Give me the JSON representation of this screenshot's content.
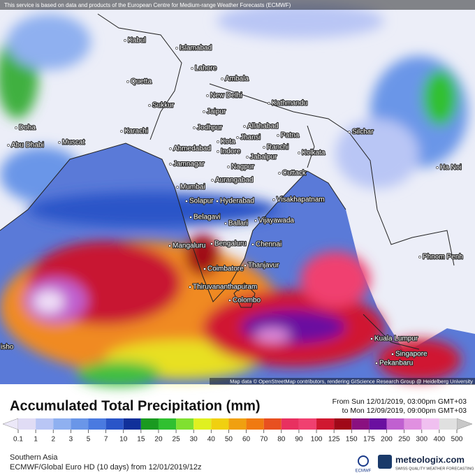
{
  "header": {
    "notice": "This service is based on data and products of the European Centre for Medium-range Weather Forecasts (ECMWF)"
  },
  "map": {
    "attribution": "Map data © OpenStreetMap contributors, rendering GIScience Research Group @ Heidelberg University",
    "cities": [
      "Kabul",
      "Islamabad",
      "Lahore",
      "Quetta",
      "Ambala",
      "New Delhi",
      "Sukkur",
      "Jaipur",
      "Karachi",
      "Jodhpur",
      "Kathmandu",
      "Allahabad",
      "Patna",
      "Jhansi",
      "Kota",
      "Ranchi",
      "Indore",
      "Ahmedabad",
      "Jabalpur",
      "Kolkata",
      "Silchar",
      "Doha",
      "Abu Dhabi",
      "Muscat",
      "Jamnagar",
      "Nagpur",
      "Cuttack",
      "Aurangabad",
      "Mumbai",
      "Solapur",
      "Hyderabad",
      "Visakhapatnam",
      "Belagavi",
      "Ballari",
      "Vijayawada",
      "Mangaluru",
      "Bengaluru",
      "Chennai",
      "Coimbatore",
      "Thanjavur",
      "Thiruvananthapuram",
      "Colombo",
      "Kuala Lumpur",
      "Singapore",
      "Pekanbaru",
      "Phnom Penh",
      "Ha Noi",
      "isho"
    ]
  },
  "panel": {
    "title": "Accumulated Total Precipitation (mm)",
    "from": "From Sun 12/01/2019, 03:00pm GMT+03",
    "to": "to Mon 12/09/2019, 09:00pm GMT+03"
  },
  "legend": {
    "ticks": [
      0.1,
      1,
      2,
      3,
      5,
      7,
      10,
      15,
      20,
      25,
      30,
      40,
      50,
      60,
      70,
      80,
      90,
      100,
      125,
      150,
      175,
      200,
      250,
      300,
      400,
      500
    ],
    "colors": [
      "#e0dcf5",
      "#b9c6f5",
      "#8fb0f0",
      "#6a96e8",
      "#4a7ae0",
      "#2a55c8",
      "#10309a",
      "#1a9a20",
      "#30c030",
      "#80e030",
      "#e0f020",
      "#f0d010",
      "#f0a010",
      "#f07a10",
      "#e85020",
      "#e83060",
      "#f04070",
      "#d01830",
      "#a00818",
      "#8a1080",
      "#6a10a0",
      "#c060d0",
      "#e090e0",
      "#f0c0f0",
      "#e0e0e0"
    ]
  },
  "footer": {
    "region": "Southern Asia",
    "model": "ECMWF/Global Euro HD (10 days)  from  12/01/2019/12z",
    "ecmwf": "ECMWF",
    "brand": "meteologix.com",
    "tagline": "SWISS QUALITY WEATHER FORECASTING"
  }
}
